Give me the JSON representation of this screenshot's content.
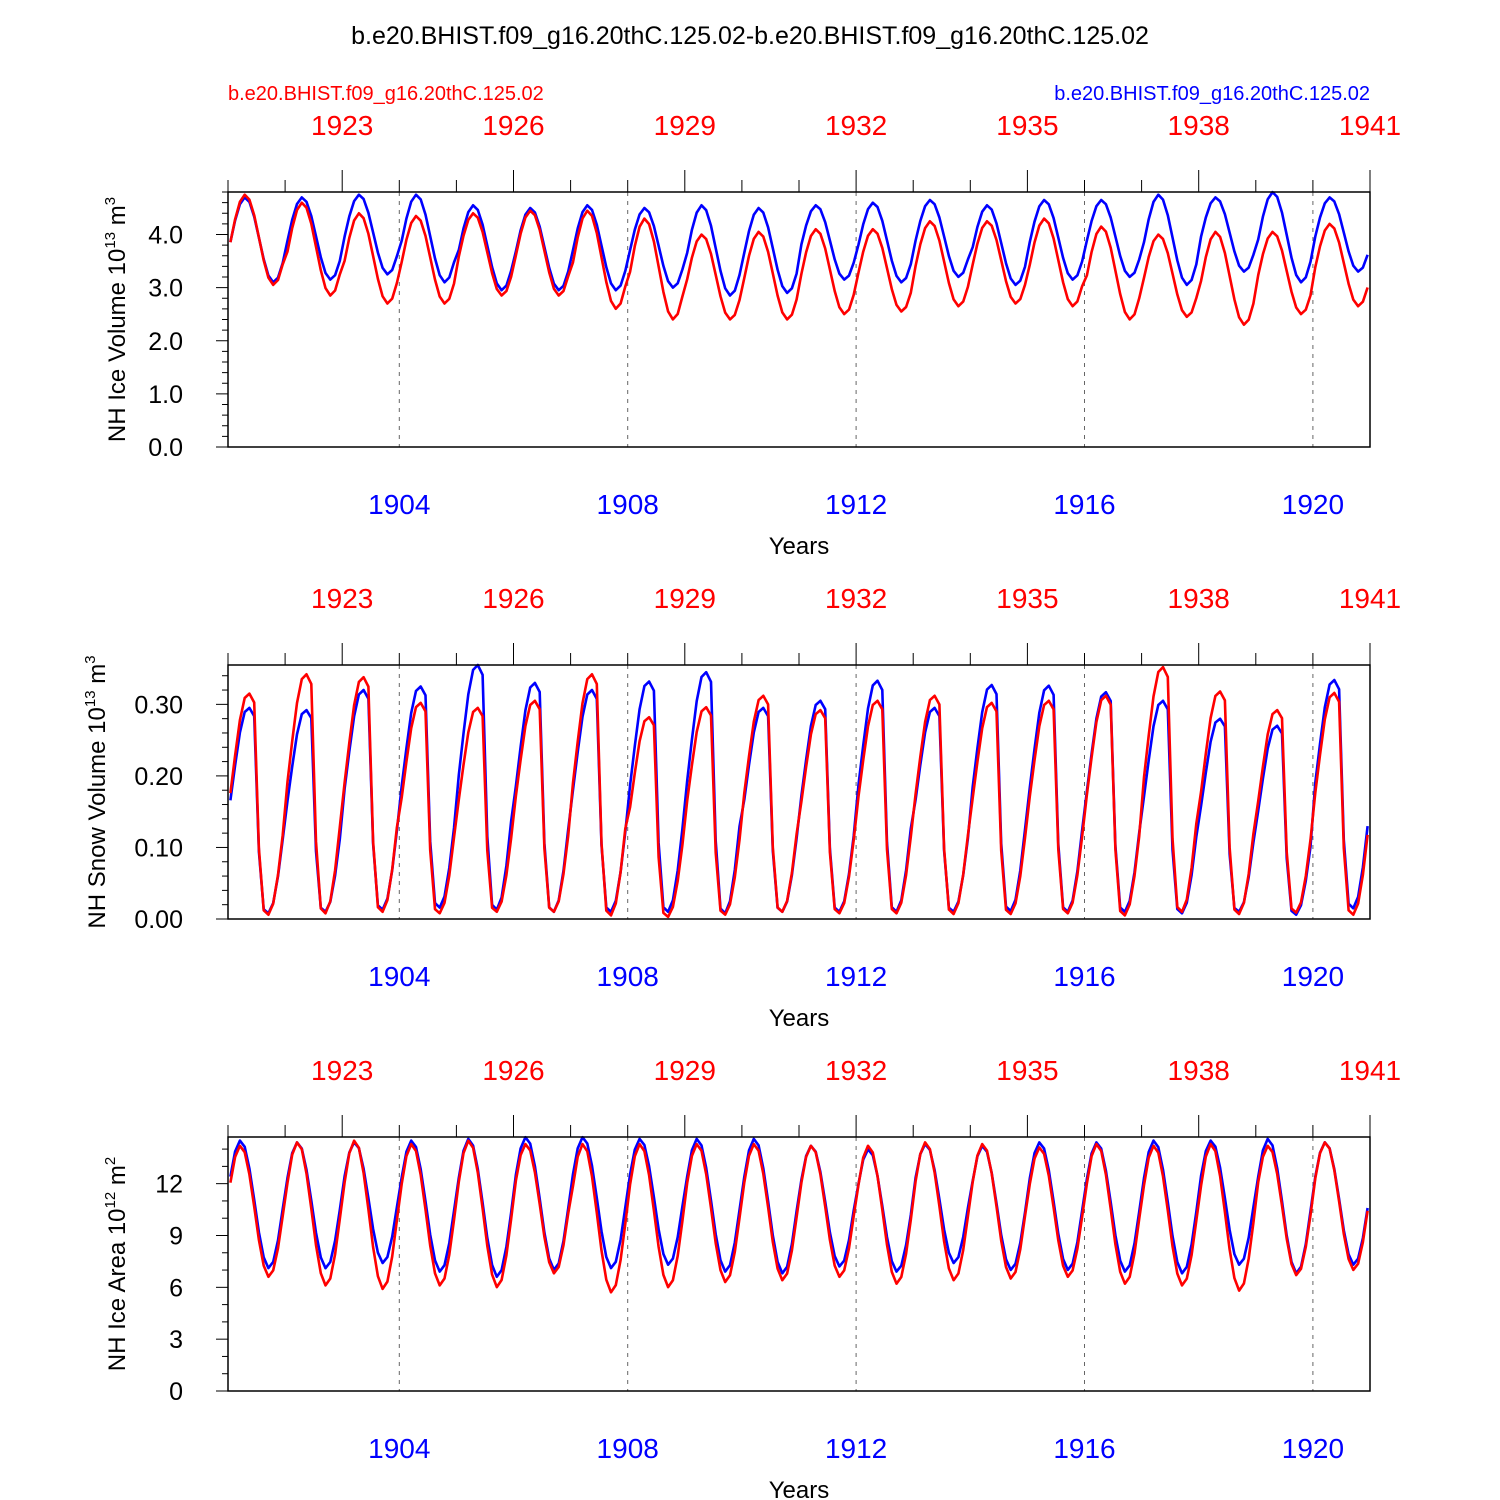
{
  "figure": {
    "title": "b.e20.BHIST.f09_g16.20thC.125.02-b.e20.BHIST.f09_g16.20thC.125.02",
    "left_case": "b.e20.BHIST.f09_g16.20thC.125.02",
    "right_case": "b.e20.BHIST.f09_g16.20thC.125.02"
  },
  "colors": {
    "red": "#ff0000",
    "blue": "#0000ff",
    "axis": "#000000"
  },
  "chart_data": [
    {
      "type": "line",
      "ylabel": "NH Ice Volume 10",
      "yexp": "13",
      "yunit": "m",
      "yunit_exp": "3",
      "xlabel": "Years",
      "ylim": [
        0,
        4.8
      ],
      "yticks": [
        0,
        1,
        2,
        3,
        4
      ],
      "ytick_labels": [
        "0.0",
        "1.0",
        "2.0",
        "3.0",
        "4.0"
      ],
      "ysubticks": 5,
      "xlim_bottom": [
        1901,
        1921
      ],
      "xticks_bottom": [
        "1904",
        "1908",
        "1912",
        "1916",
        "1920"
      ],
      "xlim_top": [
        1921,
        1941
      ],
      "xticks_top": [
        "1923",
        "1926",
        "1929",
        "1932",
        "1935",
        "1938",
        "1941"
      ],
      "series": [
        {
          "color": "blue",
          "x0": 1901.04,
          "dx": 0.08333,
          "months_per_year": 12,
          "mean": [
            4.5,
            4.6,
            4.5,
            4.3,
            4.1,
            3.9,
            3.7,
            3.4,
            3.2,
            3.15,
            3.3,
            3.6
          ],
          "peaks": [
            4.7,
            4.7,
            4.75,
            4.75,
            4.55,
            4.5,
            4.55,
            4.5,
            4.55,
            4.5,
            4.55,
            4.6,
            4.65,
            4.55,
            4.65,
            4.65,
            4.75,
            4.7,
            4.8,
            4.7
          ],
          "troughs": [
            3.1,
            3.15,
            3.25,
            3.1,
            2.95,
            2.95,
            2.95,
            3.0,
            2.85,
            2.9,
            3.15,
            3.1,
            3.2,
            3.05,
            3.15,
            3.2,
            3.05,
            3.3,
            3.1,
            3.3
          ]
        },
        {
          "color": "red",
          "x0": 1901.04,
          "dx": 0.08333,
          "months_per_year": 12,
          "mean": [
            4.5,
            4.6,
            4.5,
            4.3,
            4.1,
            3.9,
            3.7,
            3.4,
            3.2,
            3.15,
            3.3,
            3.6
          ],
          "peaks": [
            4.75,
            4.6,
            4.4,
            4.35,
            4.4,
            4.45,
            4.45,
            4.3,
            4.0,
            4.05,
            4.1,
            4.1,
            4.25,
            4.25,
            4.3,
            4.15,
            4.0,
            4.05,
            4.05,
            4.2
          ],
          "troughs": [
            3.05,
            2.85,
            2.7,
            2.7,
            2.85,
            2.85,
            2.6,
            2.4,
            2.4,
            2.4,
            2.5,
            2.55,
            2.65,
            2.7,
            2.65,
            2.4,
            2.45,
            2.3,
            2.5,
            2.65
          ]
        }
      ]
    },
    {
      "type": "line",
      "ylabel": "NH Snow Volume 10",
      "yexp": "13",
      "yunit": "m",
      "yunit_exp": "3",
      "xlabel": "Years",
      "ylim": [
        0,
        0.355
      ],
      "yticks": [
        0,
        0.1,
        0.2,
        0.3
      ],
      "ytick_labels": [
        "0.00",
        "0.10",
        "0.20",
        "0.30"
      ],
      "ysubticks": 5,
      "xlim_bottom": [
        1901,
        1921
      ],
      "xticks_bottom": [
        "1904",
        "1908",
        "1912",
        "1916",
        "1920"
      ],
      "xlim_top": [
        1921,
        1941
      ],
      "xticks_top": [
        "1923",
        "1926",
        "1929",
        "1932",
        "1935",
        "1938",
        "1941"
      ],
      "series": [
        {
          "color": "blue",
          "peaks": [
            0.295,
            0.292,
            0.32,
            0.325,
            0.355,
            0.33,
            0.32,
            0.332,
            0.345,
            0.295,
            0.305,
            0.333,
            0.295,
            0.327,
            0.326,
            0.317,
            0.305,
            0.28,
            0.27,
            0.334
          ],
          "troughs": [
            0.008,
            0.01,
            0.013,
            0.016,
            0.013,
            0.01,
            0.01,
            0.01,
            0.008,
            0.01,
            0.01,
            0.01,
            0.01,
            0.011,
            0.01,
            0.01,
            0.008,
            0.01,
            0.006,
            0.015
          ]
        },
        {
          "color": "red",
          "peaks": [
            0.315,
            0.342,
            0.338,
            0.302,
            0.295,
            0.305,
            0.342,
            0.282,
            0.296,
            0.312,
            0.292,
            0.305,
            0.312,
            0.302,
            0.305,
            0.312,
            0.352,
            0.318,
            0.292,
            0.316
          ],
          "troughs": [
            0.006,
            0.008,
            0.01,
            0.008,
            0.01,
            0.01,
            0.005,
            0.003,
            0.006,
            0.01,
            0.008,
            0.008,
            0.007,
            0.007,
            0.008,
            0.005,
            0.01,
            0.007,
            0.009,
            0.006
          ]
        }
      ]
    },
    {
      "type": "line",
      "ylabel": "NH Ice Area 10",
      "yexp": "12",
      "yunit": "m",
      "yunit_exp": "2",
      "xlabel": "Years",
      "ylim": [
        0,
        14.7
      ],
      "yticks": [
        0,
        3,
        6,
        9,
        12
      ],
      "ytick_labels": [
        "0",
        "3",
        "6",
        "9",
        "12"
      ],
      "ysubticks": 3,
      "xlim_bottom": [
        1901,
        1921
      ],
      "xticks_bottom": [
        "1904",
        "1908",
        "1912",
        "1916",
        "1920"
      ],
      "xlim_top": [
        1921,
        1941
      ],
      "xticks_top": [
        "1923",
        "1926",
        "1929",
        "1932",
        "1935",
        "1938",
        "1941"
      ],
      "series": [
        {
          "color": "blue",
          "peaks": [
            14.5,
            14.4,
            14.4,
            14.5,
            14.6,
            14.7,
            14.7,
            14.6,
            14.6,
            14.6,
            14.2,
            14.0,
            14.3,
            14.2,
            14.4,
            14.4,
            14.5,
            14.5,
            14.6,
            14.4
          ],
          "troughs": [
            7.1,
            7.1,
            7.4,
            6.9,
            6.6,
            7.0,
            7.1,
            7.3,
            6.9,
            6.8,
            7.2,
            6.9,
            7.4,
            7.0,
            7.0,
            6.9,
            6.8,
            7.3,
            6.8,
            7.3
          ]
        },
        {
          "color": "red",
          "peaks": [
            14.2,
            14.4,
            14.5,
            14.3,
            14.5,
            14.3,
            14.3,
            14.3,
            14.3,
            14.3,
            14.2,
            14.2,
            14.4,
            14.3,
            14.1,
            14.3,
            14.2,
            14.3,
            14.2,
            14.4
          ],
          "troughs": [
            6.6,
            6.1,
            5.9,
            6.1,
            6.0,
            6.8,
            5.7,
            6.0,
            6.3,
            6.4,
            6.6,
            6.2,
            6.4,
            6.5,
            6.6,
            6.2,
            6.1,
            5.8,
            6.7,
            7.0
          ]
        }
      ]
    }
  ]
}
